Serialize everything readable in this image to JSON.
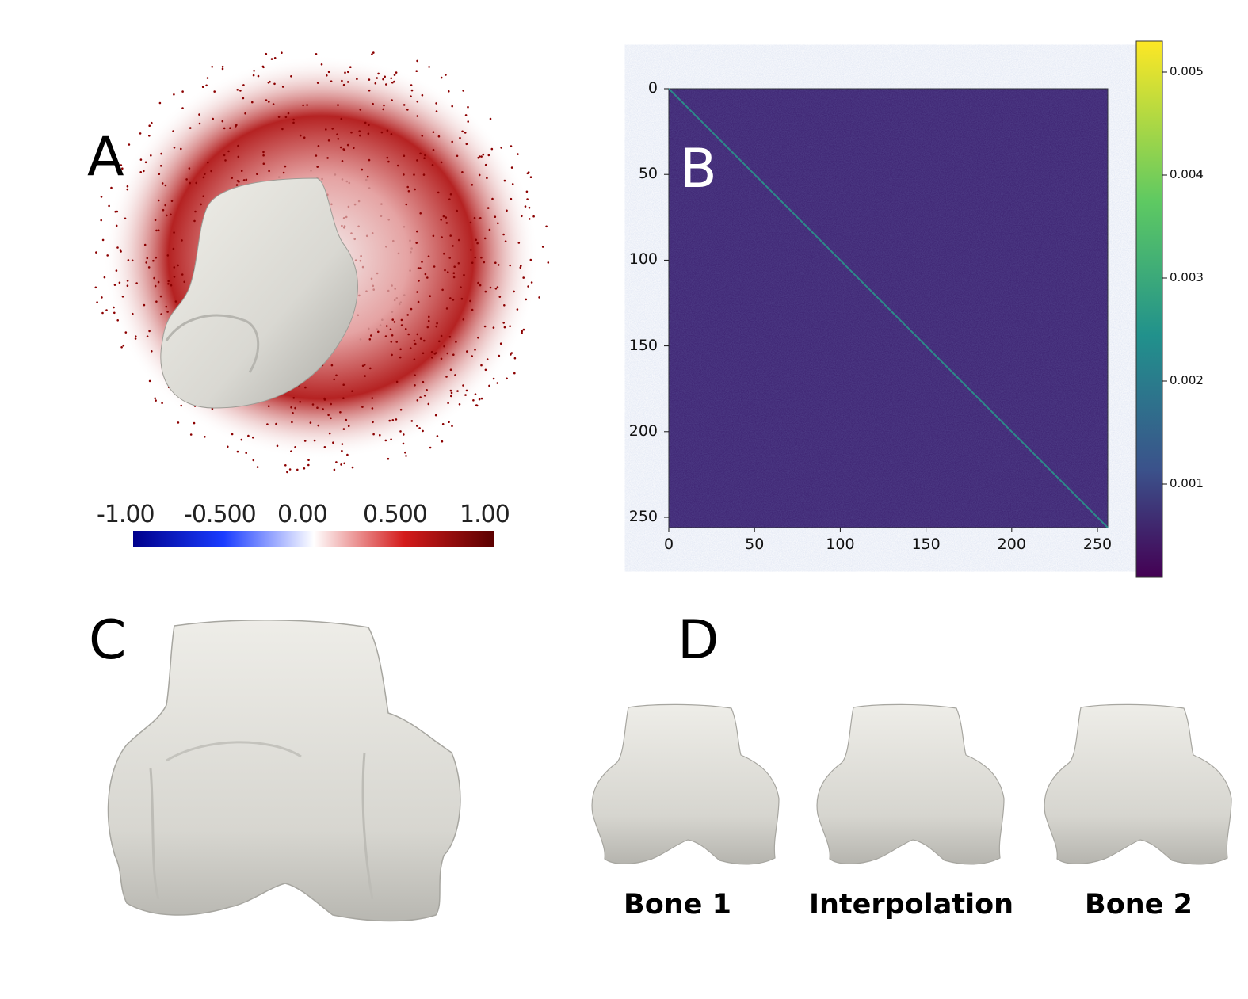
{
  "panels": {
    "a": {
      "letter": "A"
    },
    "b": {
      "letter": "B"
    },
    "c": {
      "letter": "C"
    },
    "d": {
      "letter": "D"
    }
  },
  "colorbar_a": {
    "labels": [
      "-1.00",
      "-0.500",
      "0.00",
      "0.500",
      "1.00"
    ],
    "colors": {
      "neg": "#00008b",
      "mid": "#ffffff",
      "pos": "#7a0000"
    }
  },
  "panel_d_labels": [
    "Bone 1",
    "Interpolation",
    "Bone 2"
  ],
  "chart_data": {
    "type": "heatmap",
    "x_ticks": [
      "0",
      "50",
      "100",
      "150",
      "200",
      "250"
    ],
    "y_ticks": [
      "0",
      "50",
      "100",
      "150",
      "200",
      "250"
    ],
    "xlim": [
      0,
      256
    ],
    "ylim": [
      256,
      0
    ],
    "matrix_size": 256,
    "description_values": {
      "off_diagonal_approx": 0.0003,
      "diagonal_approx": 0.0015
    },
    "colorbar": {
      "ticks": [
        "0.001",
        "0.002",
        "0.003",
        "0.004",
        "0.005"
      ],
      "range": [
        0.0001,
        0.0053
      ],
      "colormap": "viridis"
    },
    "colors": {
      "background": "#3b1e6e",
      "diagonal": "#2d8a8a"
    }
  }
}
